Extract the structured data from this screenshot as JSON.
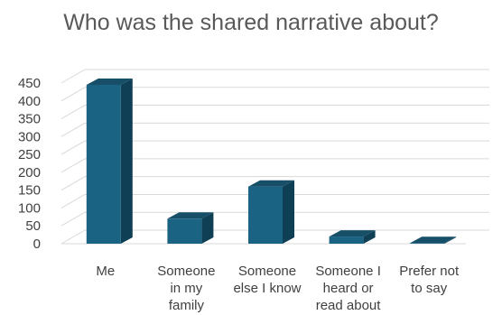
{
  "chart_data": {
    "type": "bar",
    "title": "Who was the shared narrative about?",
    "categories": [
      [
        "Me"
      ],
      [
        "Someone",
        "in my",
        "family"
      ],
      [
        "Someone",
        "else I know"
      ],
      [
        "Someone I",
        "heard or",
        "read about"
      ],
      [
        "Prefer not",
        "to say"
      ]
    ],
    "values": [
      445,
      70,
      160,
      20,
      2
    ],
    "ylim": [
      0,
      450
    ],
    "yticks": [
      "0",
      "50",
      "100",
      "150",
      "200",
      "250",
      "300",
      "350",
      "400",
      "450"
    ],
    "xlabel": "",
    "ylabel": "",
    "grid": true,
    "legend": "none",
    "colors": {
      "bar_front": "#1b6383",
      "bar_side": "#0f3f55",
      "bar_top": "#174f69",
      "grid": "#d9d9d9",
      "text": "#404040"
    }
  }
}
